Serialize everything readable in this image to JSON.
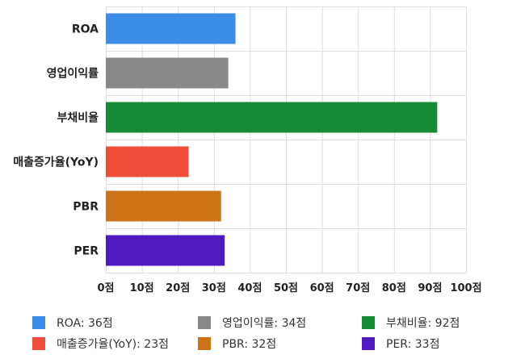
{
  "chart_data": {
    "type": "bar",
    "orientation": "horizontal",
    "categories": [
      "ROA",
      "영업이익률",
      "부채비율",
      "매출증가율(YoY)",
      "PBR",
      "PER"
    ],
    "values": [
      36,
      34,
      92,
      23,
      32,
      33
    ],
    "colors": [
      "#3b8ee8",
      "#888888",
      "#178c36",
      "#ef4d3a",
      "#cc7417",
      "#4f1ac2"
    ],
    "xlim": [
      0,
      100
    ],
    "ticks": [
      0,
      10,
      20,
      30,
      40,
      50,
      60,
      70,
      80,
      90,
      100
    ],
    "tick_suffix": "점",
    "grid": true,
    "legend_position": "bottom"
  },
  "legend": [
    {
      "label": "ROA: 36점",
      "color": "#3b8ee8"
    },
    {
      "label": "영업이익률: 34점",
      "color": "#888888"
    },
    {
      "label": "부채비율: 92점",
      "color": "#178c36"
    },
    {
      "label": "매출증가율(YoY): 23점",
      "color": "#ef4d3a"
    },
    {
      "label": "PBR: 32점",
      "color": "#cc7417"
    },
    {
      "label": "PER: 33점",
      "color": "#4f1ac2"
    }
  ]
}
